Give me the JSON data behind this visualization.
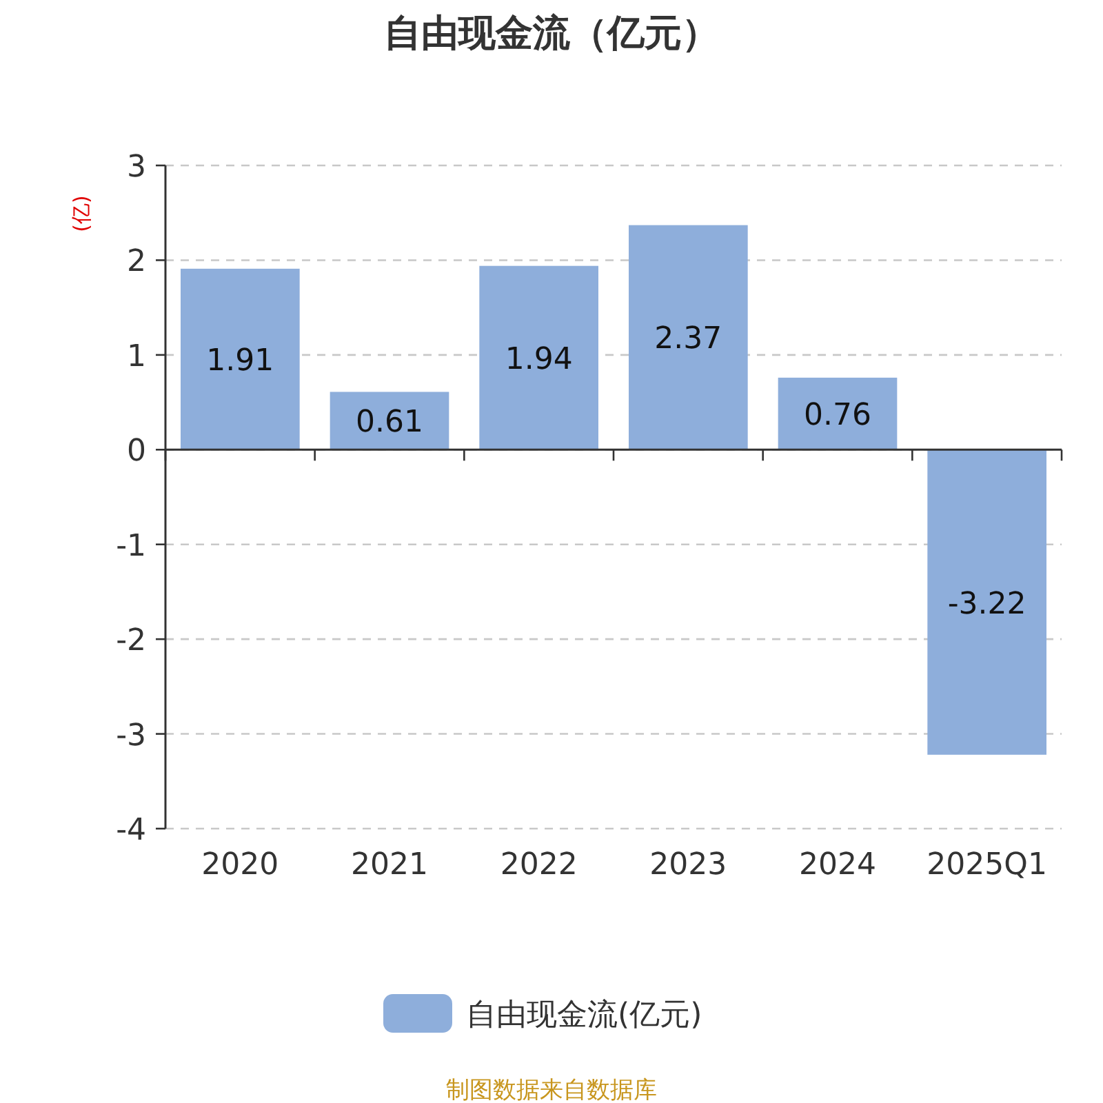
{
  "chart_data": {
    "type": "bar",
    "title": "自由现金流（亿元）",
    "ylabel": "(亿)",
    "categories": [
      "2020",
      "2021",
      "2022",
      "2023",
      "2024",
      "2025Q1"
    ],
    "series": [
      {
        "name": "自由现金流(亿元)",
        "color": "#8eaedb",
        "values": [
          1.91,
          0.61,
          1.94,
          2.37,
          0.76,
          -3.22
        ]
      }
    ],
    "ylim": [
      -4,
      3
    ],
    "yticks": [
      -4,
      -3,
      -2,
      -1,
      0,
      1,
      2,
      3
    ],
    "grid": "y",
    "data_labels": true,
    "legend": "bottom",
    "annotations": [
      "制图数据来自数据库"
    ]
  }
}
